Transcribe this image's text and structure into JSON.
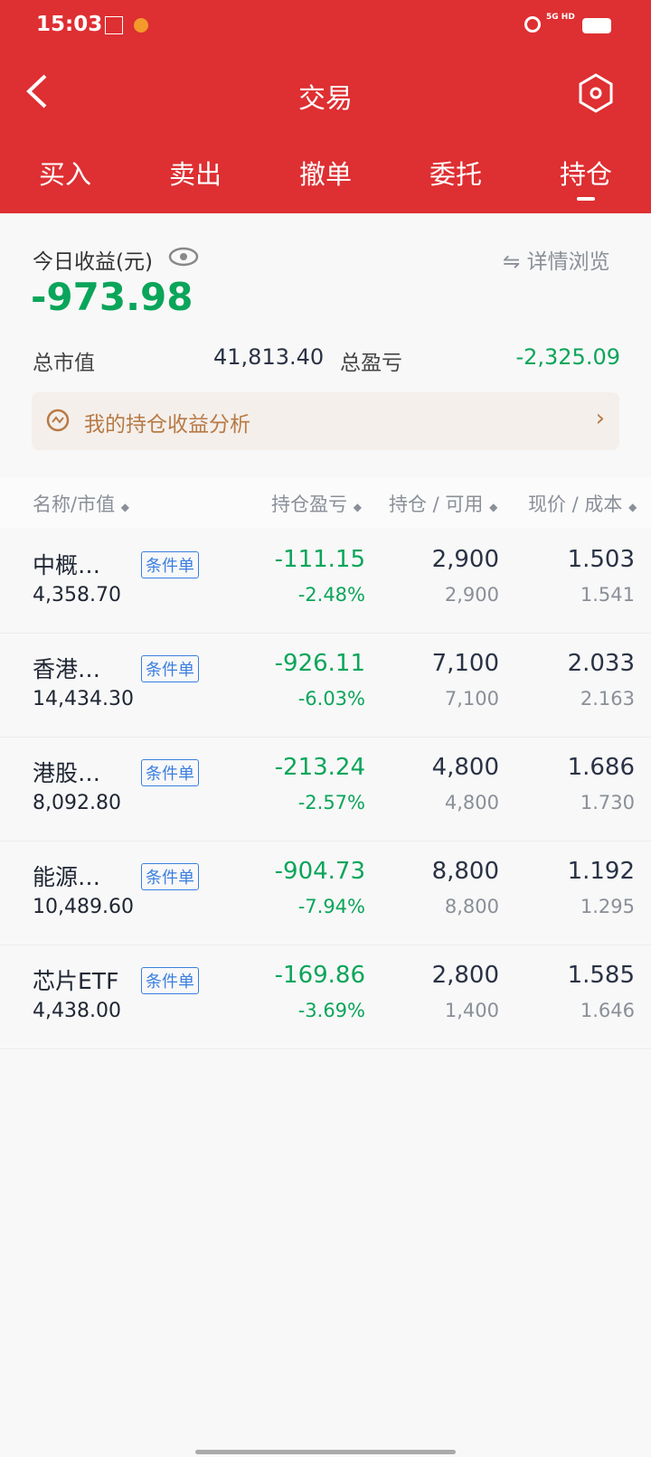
{
  "status": {
    "time": "15:03",
    "network": "5G HD"
  },
  "header": {
    "title": "交易",
    "tabs": [
      "买入",
      "卖出",
      "撤单",
      "委托",
      "持仓"
    ],
    "active_tab": 4
  },
  "summary": {
    "today_label": "今日收益(元)",
    "today_value": "-973.98",
    "details_label": "详情浏览",
    "market_value_label": "总市值",
    "market_value": "41,813.40",
    "total_pl_label": "总盈亏",
    "total_pl": "-2,325.09",
    "analysis_label": "我的持仓收益分析"
  },
  "table": {
    "headers": [
      "名称/市值",
      "持仓盈亏",
      "持仓 / 可用",
      "现价 / 成本"
    ],
    "rows": [
      {
        "name": "中概…",
        "badge": "条件单",
        "mv": "4,358.70",
        "pl": "-111.15",
        "plpct": "-2.48%",
        "pos": "2,900",
        "avail": "2,900",
        "price": "1.503",
        "cost": "1.541"
      },
      {
        "name": "香港…",
        "badge": "条件单",
        "mv": "14,434.30",
        "pl": "-926.11",
        "plpct": "-6.03%",
        "pos": "7,100",
        "avail": "7,100",
        "price": "2.033",
        "cost": "2.163"
      },
      {
        "name": "港股…",
        "badge": "条件单",
        "mv": "8,092.80",
        "pl": "-213.24",
        "plpct": "-2.57%",
        "pos": "4,800",
        "avail": "4,800",
        "price": "1.686",
        "cost": "1.730"
      },
      {
        "name": "能源…",
        "badge": "条件单",
        "mv": "10,489.60",
        "pl": "-904.73",
        "plpct": "-7.94%",
        "pos": "8,800",
        "avail": "8,800",
        "price": "1.192",
        "cost": "1.295"
      },
      {
        "name": "芯片ETF",
        "badge": "条件单",
        "mv": "4,438.00",
        "pl": "-169.86",
        "plpct": "-3.69%",
        "pos": "2,800",
        "avail": "1,400",
        "price": "1.585",
        "cost": "1.646"
      }
    ]
  },
  "colors": {
    "brand": "#de2f32",
    "loss": "#0aa55a",
    "badge": "#3b7fe0",
    "analysis": "#b87a45"
  }
}
